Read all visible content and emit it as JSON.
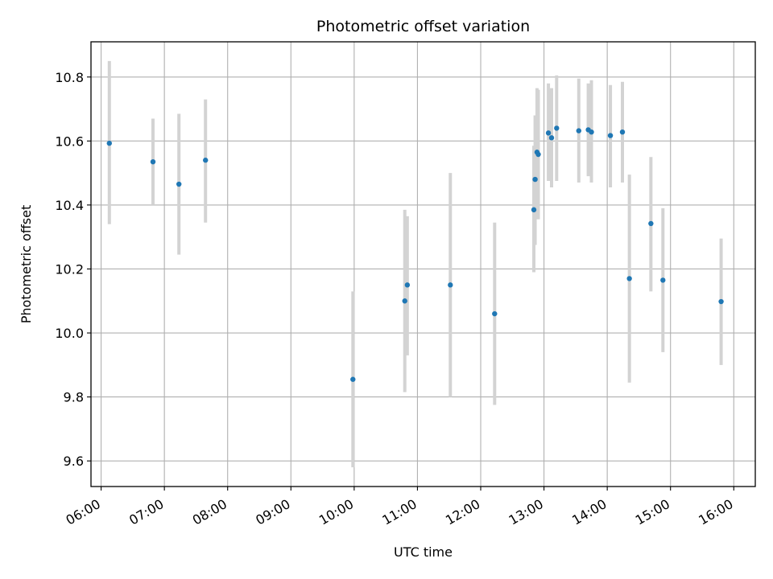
{
  "chart_data": {
    "type": "scatter",
    "title": "Photometric offset variation",
    "xlabel": "UTC time",
    "ylabel": "Photometric offset",
    "x_unit": "hours UTC",
    "xlim": [
      5.84,
      16.34
    ],
    "ylim": [
      9.52,
      10.91
    ],
    "x_ticks": [
      6,
      7,
      8,
      9,
      10,
      11,
      12,
      13,
      14,
      15,
      16
    ],
    "x_tick_labels": [
      "06:00",
      "07:00",
      "08:00",
      "09:00",
      "10:00",
      "11:00",
      "12:00",
      "13:00",
      "14:00",
      "15:00",
      "16:00"
    ],
    "y_ticks": [
      9.6,
      9.8,
      10.0,
      10.2,
      10.4,
      10.6,
      10.8
    ],
    "y_tick_labels": [
      "9.6",
      "9.8",
      "10.0",
      "10.2",
      "10.4",
      "10.6",
      "10.8"
    ],
    "grid": true,
    "point_color": "#1f77b4",
    "errorbar_color": "#d3d3d3",
    "series": [
      {
        "points": [
          {
            "x": 6.13,
            "y": 10.593,
            "lo": 10.34,
            "hi": 10.85
          },
          {
            "x": 6.82,
            "y": 10.535,
            "lo": 10.4,
            "hi": 10.67
          },
          {
            "x": 7.23,
            "y": 10.465,
            "lo": 10.245,
            "hi": 10.685
          },
          {
            "x": 7.65,
            "y": 10.54,
            "lo": 10.345,
            "hi": 10.73
          },
          {
            "x": 9.98,
            "y": 9.855,
            "lo": 9.58,
            "hi": 10.13
          },
          {
            "x": 10.8,
            "y": 10.1,
            "lo": 9.815,
            "hi": 10.385
          },
          {
            "x": 10.84,
            "y": 10.15,
            "lo": 9.93,
            "hi": 10.365
          },
          {
            "x": 11.52,
            "y": 10.15,
            "lo": 9.8,
            "hi": 10.5
          },
          {
            "x": 12.22,
            "y": 10.06,
            "lo": 9.775,
            "hi": 10.345
          },
          {
            "x": 12.84,
            "y": 10.385,
            "lo": 10.19,
            "hi": 10.585
          },
          {
            "x": 12.86,
            "y": 10.48,
            "lo": 10.275,
            "hi": 10.68
          },
          {
            "x": 12.89,
            "y": 10.565,
            "lo": 10.37,
            "hi": 10.765
          },
          {
            "x": 12.91,
            "y": 10.558,
            "lo": 10.355,
            "hi": 10.76
          },
          {
            "x": 13.07,
            "y": 10.625,
            "lo": 10.475,
            "hi": 10.78
          },
          {
            "x": 13.12,
            "y": 10.61,
            "lo": 10.455,
            "hi": 10.765
          },
          {
            "x": 13.2,
            "y": 10.64,
            "lo": 10.475,
            "hi": 10.805
          },
          {
            "x": 13.55,
            "y": 10.632,
            "lo": 10.47,
            "hi": 10.795
          },
          {
            "x": 13.7,
            "y": 10.635,
            "lo": 10.49,
            "hi": 10.78
          },
          {
            "x": 13.75,
            "y": 10.628,
            "lo": 10.47,
            "hi": 10.79
          },
          {
            "x": 14.05,
            "y": 10.617,
            "lo": 10.455,
            "hi": 10.775
          },
          {
            "x": 14.24,
            "y": 10.628,
            "lo": 10.47,
            "hi": 10.785
          },
          {
            "x": 14.35,
            "y": 10.17,
            "lo": 9.845,
            "hi": 10.495
          },
          {
            "x": 14.69,
            "y": 10.342,
            "lo": 10.13,
            "hi": 10.55
          },
          {
            "x": 14.88,
            "y": 10.165,
            "lo": 9.94,
            "hi": 10.39
          },
          {
            "x": 15.8,
            "y": 10.098,
            "lo": 9.9,
            "hi": 10.295
          }
        ]
      }
    ]
  }
}
